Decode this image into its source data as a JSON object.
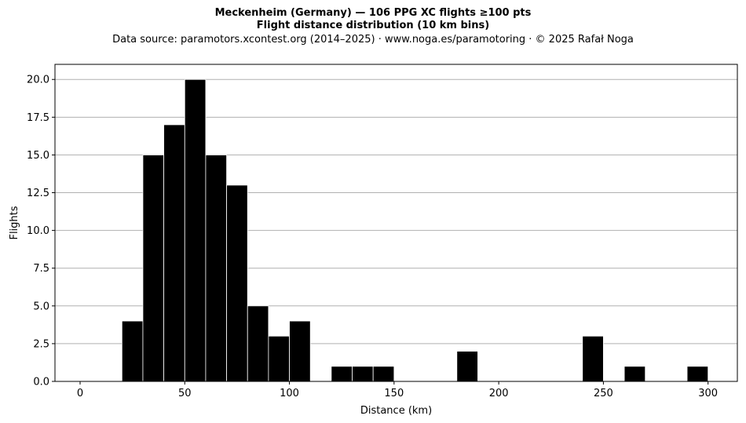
{
  "header": {
    "title_line1": "Meckenheim (Germany)  —  106 PPG XC flights ≥100 pts",
    "title_line2": "Flight distance distribution (10 km bins)",
    "subtitle": "Data source: paramotors.xcontest.org (2014–2025)  ·  www.noga.es/paramotoring  ·  © 2025 Rafał Noga"
  },
  "chart_data": {
    "type": "bar",
    "title": "Meckenheim (Germany)  —  106 PPG XC flights ≥100 pts",
    "subtitle": "Flight distance distribution (10 km bins)",
    "xlabel": "Distance (km)",
    "ylabel": "Flights",
    "bin_width": 10,
    "bins": [
      {
        "start": 20,
        "value": 4
      },
      {
        "start": 30,
        "value": 15
      },
      {
        "start": 40,
        "value": 17
      },
      {
        "start": 50,
        "value": 20
      },
      {
        "start": 60,
        "value": 15
      },
      {
        "start": 70,
        "value": 13
      },
      {
        "start": 80,
        "value": 5
      },
      {
        "start": 90,
        "value": 3
      },
      {
        "start": 100,
        "value": 4
      },
      {
        "start": 120,
        "value": 1
      },
      {
        "start": 130,
        "value": 1
      },
      {
        "start": 140,
        "value": 1
      },
      {
        "start": 180,
        "value": 2
      },
      {
        "start": 240,
        "value": 3
      },
      {
        "start": 260,
        "value": 1
      },
      {
        "start": 290,
        "value": 1
      }
    ],
    "xlim": [
      -12,
      314
    ],
    "ylim": [
      0,
      21
    ],
    "xticks": [
      0,
      50,
      100,
      150,
      200,
      250,
      300
    ],
    "xtick_labels": [
      "0",
      "50",
      "100",
      "150",
      "200",
      "250",
      "300"
    ],
    "yticks": [
      0,
      2.5,
      5,
      7.5,
      10,
      12.5,
      15,
      17.5,
      20
    ],
    "ytick_labels": [
      "0.0",
      "2.5",
      "5.0",
      "7.5",
      "10.0",
      "12.5",
      "15.0",
      "17.5",
      "20.0"
    ],
    "grid": "y",
    "bar_color": "#000000",
    "edge_color": "#ffffff",
    "grid_color": "#b0b0b0"
  }
}
